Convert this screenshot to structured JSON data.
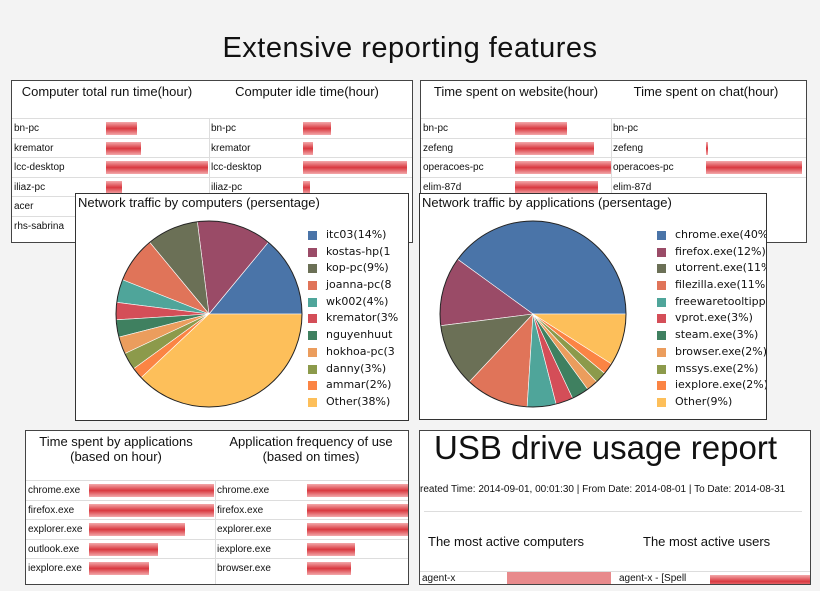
{
  "title": "Extensive reporting features",
  "panels": {
    "computers": {
      "left_title": "Computer total run time(hour)",
      "right_title": "Computer idle time(hour)",
      "left_rows": [
        {
          "label": "bn-pc",
          "value": 0.3
        },
        {
          "label": "kremator",
          "value": 0.34
        },
        {
          "label": "lcc-desktop",
          "value": 1.0
        },
        {
          "label": "iliaz-pc",
          "value": 0.16
        },
        {
          "label": "acer",
          "value": 0
        },
        {
          "label": "rhs-sabrina",
          "value": 0
        }
      ],
      "right_rows": [
        {
          "label": "bn-pc",
          "value": 0.27
        },
        {
          "label": "kremator",
          "value": 0.1
        },
        {
          "label": "lcc-desktop",
          "value": 1.0
        },
        {
          "label": "iliaz-pc",
          "value": 0.07
        }
      ]
    },
    "web": {
      "left_title": "Time spent on website(hour)",
      "right_title": "Time spent on chat(hour)",
      "left_rows": [
        {
          "label": "bn-pc",
          "value": 0.54
        },
        {
          "label": "zefeng",
          "value": 0.82
        },
        {
          "label": "operacoes-pc",
          "value": 1.0
        },
        {
          "label": "elim-87d",
          "value": 0.86
        }
      ],
      "right_rows": [
        {
          "label": "bn-pc",
          "value": 0
        },
        {
          "label": "zefeng",
          "value": 0.02
        },
        {
          "label": "operacoes-pc",
          "value": 1.0
        },
        {
          "label": "elim-87d",
          "value": 0
        }
      ]
    },
    "apps": {
      "left_title": "Time spent by applications\n(based on hour)",
      "right_title": "Application frequency of use\n(based on times)",
      "left_rows": [
        {
          "label": "chrome.exe",
          "value": 1.0
        },
        {
          "label": "firefox.exe",
          "value": 1.0
        },
        {
          "label": "explorer.exe",
          "value": 0.77
        },
        {
          "label": "outlook.exe",
          "value": 0.55
        },
        {
          "label": "iexplore.exe",
          "value": 0.48
        }
      ],
      "right_rows": [
        {
          "label": "chrome.exe",
          "value": 1.0
        },
        {
          "label": "firefox.exe",
          "value": 0.82
        },
        {
          "label": "explorer.exe",
          "value": 0.81
        },
        {
          "label": "iexplore.exe",
          "value": 0.38
        },
        {
          "label": "browser.exe",
          "value": 0.35
        }
      ]
    },
    "usb": {
      "title": "USB drive usage report",
      "meta": "reated Time: 2014-09-01, 00:01:30 | From Date: 2014-08-01 | To Date: 2014-08-31",
      "left_title": "The most active computers",
      "right_title": "The most active users",
      "left_row": "agent-x",
      "right_row": "agent-x - [Spell"
    }
  },
  "chart_data": [
    {
      "type": "pie",
      "title": "Network traffic by computers (persentage)",
      "legend": [
        "itc03(14%)",
        "kostas-hp(1",
        "kop-pc(9%)",
        "joanna-pc(8",
        "wk002(4%)",
        "kremator(3%",
        "nguyenhuut",
        "hokhoa-pc(3",
        "danny(3%)",
        "ammar(2%)",
        "Other(38%)"
      ],
      "values": [
        14,
        13,
        9,
        8,
        4,
        3,
        3,
        3,
        3,
        2,
        38
      ],
      "colors": [
        "#4a74a8",
        "#9a4b67",
        "#6b7056",
        "#e07459",
        "#4fa59a",
        "#d44e58",
        "#3f8060",
        "#eb9d5d",
        "#8c9a4b",
        "#fb8444",
        "#fdbf5a"
      ],
      "legend_placement": "right"
    },
    {
      "type": "pie",
      "title": "Network traffic by applications (persentage)",
      "legend": [
        "chrome.exe(40%",
        "firefox.exe(12%)",
        "utorrent.exe(11%",
        "filezilla.exe(11%)",
        "freewaretooltippı",
        "vprot.exe(3%)",
        "steam.exe(3%)",
        "browser.exe(2%)",
        "mssys.exe(2%)",
        "iexplore.exe(2%)",
        "Other(9%)"
      ],
      "values": [
        40,
        12,
        11,
        11,
        5,
        3,
        3,
        2,
        2,
        2,
        9
      ],
      "colors": [
        "#4a74a8",
        "#9a4b67",
        "#6b7056",
        "#e07459",
        "#4fa59a",
        "#d44e58",
        "#3f8060",
        "#eb9d5d",
        "#8c9a4b",
        "#fb8444",
        "#fdbf5a"
      ],
      "legend_placement": "right"
    }
  ]
}
